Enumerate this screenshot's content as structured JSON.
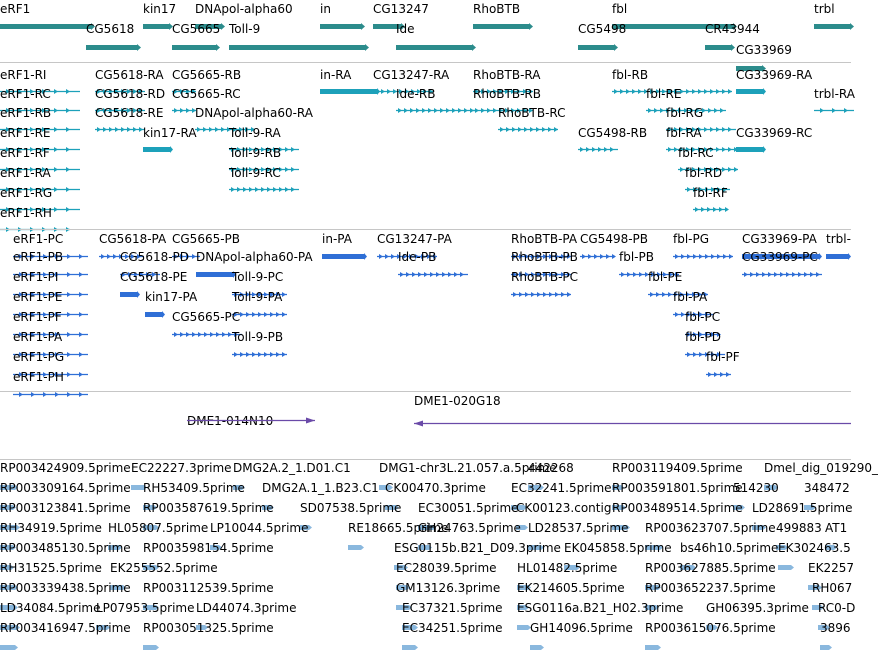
{
  "tracks": {
    "genes": {
      "color": "#2c8c8c",
      "features": [
        {
          "label": "eRF1"
        },
        {
          "label": "kin17"
        },
        {
          "label": "DNApol-alpha60"
        },
        {
          "label": "in"
        },
        {
          "label": "CG13247"
        },
        {
          "label": "RhoBTB"
        },
        {
          "label": "fbl"
        },
        {
          "label": "trbl"
        },
        {
          "label": "CG5618"
        },
        {
          "label": "CG5665"
        },
        {
          "label": "Toll-9"
        },
        {
          "label": "Ide"
        },
        {
          "label": "CG5498"
        },
        {
          "label": "CR43944"
        },
        {
          "label": "CG33969"
        }
      ]
    },
    "transcripts": {
      "color": "#1da1ba",
      "features": [
        {
          "label": "eRF1-RI"
        },
        {
          "label": "CG5618-RA"
        },
        {
          "label": "CG5665-RB"
        },
        {
          "label": "in-RA"
        },
        {
          "label": "CG13247-RA"
        },
        {
          "label": "RhoBTB-RA"
        },
        {
          "label": "fbl-RB"
        },
        {
          "label": "CG33969-RA"
        },
        {
          "label": "eRF1-RC"
        },
        {
          "label": "CG5618-RD"
        },
        {
          "label": "CG5665-RC"
        },
        {
          "label": "Ide-RB"
        },
        {
          "label": "RhoBTB-RB"
        },
        {
          "label": "fbl-RE"
        },
        {
          "label": "trbl-RA"
        },
        {
          "label": "eRF1-RB"
        },
        {
          "label": "CG5618-RE"
        },
        {
          "label": "DNApol-alpha60-RA"
        },
        {
          "label": "RhoBTB-RC"
        },
        {
          "label": "fbl-RG"
        },
        {
          "label": "eRF1-RE"
        },
        {
          "label": "kin17-RA"
        },
        {
          "label": "Toll-9-RA"
        },
        {
          "label": "CG5498-RB"
        },
        {
          "label": "fbl-RA"
        },
        {
          "label": "CG33969-RC"
        },
        {
          "label": "eRF1-RF"
        },
        {
          "label": "Toll-9-RB"
        },
        {
          "label": "fbl-RC"
        },
        {
          "label": "eRF1-RA"
        },
        {
          "label": "Toll-9-RC"
        },
        {
          "label": "fbl-RD"
        },
        {
          "label": "eRF1-RG"
        },
        {
          "label": "fbl-RF"
        },
        {
          "label": "eRF1-RH"
        }
      ]
    },
    "proteins": {
      "color": "#2f6fd6",
      "features": [
        {
          "label": "eRF1-PC"
        },
        {
          "label": "CG5618-PA"
        },
        {
          "label": "CG5665-PB"
        },
        {
          "label": "in-PA"
        },
        {
          "label": "CG13247-PA"
        },
        {
          "label": "RhoBTB-PA"
        },
        {
          "label": "CG5498-PB"
        },
        {
          "label": "fbl-PG"
        },
        {
          "label": "CG33969-PA"
        },
        {
          "label": "trbl-"
        },
        {
          "label": "eRF1-PB"
        },
        {
          "label": "CG5618-PD"
        },
        {
          "label": "DNApol-alpha60-PA"
        },
        {
          "label": "Ide-PB"
        },
        {
          "label": "RhoBTB-PB"
        },
        {
          "label": "fbl-PB"
        },
        {
          "label": "CG33969-PC"
        },
        {
          "label": "eRF1-PI"
        },
        {
          "label": "CG5618-PE"
        },
        {
          "label": "Toll-9-PC"
        },
        {
          "label": "RhoBTB-PC"
        },
        {
          "label": "fbl-PE"
        },
        {
          "label": "eRF1-PE"
        },
        {
          "label": "kin17-PA"
        },
        {
          "label": "Toll-9-PA"
        },
        {
          "label": "fbl-PA"
        },
        {
          "label": "eRF1-PF"
        },
        {
          "label": "CG5665-PC"
        },
        {
          "label": "fbl-PC"
        },
        {
          "label": "eRF1-PA"
        },
        {
          "label": "Toll-9-PB"
        },
        {
          "label": "fbl-PD"
        },
        {
          "label": "eRF1-PG"
        },
        {
          "label": "fbl-PF"
        },
        {
          "label": "eRF1-PH"
        }
      ]
    },
    "clones": {
      "color": "#6a4aa8",
      "features": [
        {
          "label": "DME1-020G18"
        },
        {
          "label": "DME1-014N10"
        }
      ]
    },
    "ests": {
      "color": "#8ab8de",
      "features": [
        {
          "label": "RP003424909.5prime"
        },
        {
          "label": "EC22227.3prime"
        },
        {
          "label": "DMG2A.2_1.D01.C1"
        },
        {
          "label": "DMG1-chr3L.21.057.a.5prime"
        },
        {
          "label": "442268"
        },
        {
          "label": "RP003119409.5prime"
        },
        {
          "label": "Dmel_dig_019290_"
        },
        {
          "label": "RP003309164.5prime"
        },
        {
          "label": "RH53409.5prime"
        },
        {
          "label": "DMG2A.1_1.B23.C1"
        },
        {
          "label": "CK00470.3prime"
        },
        {
          "label": "EC32241.5prime"
        },
        {
          "label": "RP003591801.5prime"
        },
        {
          "label": "514230"
        },
        {
          "label": "348472"
        },
        {
          "label": "RP003123841.5prime"
        },
        {
          "label": "RP003587619.5prime"
        },
        {
          "label": "SD07538.5prime"
        },
        {
          "label": "EC30051.5prime"
        },
        {
          "label": "CK00123.contig"
        },
        {
          "label": "RP003489514.5prime"
        },
        {
          "label": "LD28691.5prime"
        },
        {
          "label": "RH34919.5prime"
        },
        {
          "label": "HL05807.5prime"
        },
        {
          "label": "LP10044.5prime"
        },
        {
          "label": "RE18665.5prime"
        },
        {
          "label": "GH24763.5prime"
        },
        {
          "label": "LD28537.5prime"
        },
        {
          "label": "RP003623707.5prime"
        },
        {
          "label": "499883"
        },
        {
          "label": "AT1"
        },
        {
          "label": "RP003485130.5prime"
        },
        {
          "label": "RP003598154.5prime"
        },
        {
          "label": "ESG0115b.B21_D09.3prime"
        },
        {
          "label": "EK045858.5prime"
        },
        {
          "label": "bs46h10.5prime"
        },
        {
          "label": "EK302463.5"
        },
        {
          "label": "RH31525.5prime"
        },
        {
          "label": "EK255552.5prime"
        },
        {
          "label": "EC28039.5prime"
        },
        {
          "label": "HL01482.5prime"
        },
        {
          "label": "RP003627885.5prime"
        },
        {
          "label": "EK2257"
        },
        {
          "label": "RP003339438.5prime"
        },
        {
          "label": "RP003112539.5prime"
        },
        {
          "label": "GM13126.3prime"
        },
        {
          "label": "EK214605.5prime"
        },
        {
          "label": "RP003652237.5prime"
        },
        {
          "label": "RH067"
        },
        {
          "label": "LD34084.5prime"
        },
        {
          "label": "LP07953.5prime"
        },
        {
          "label": "LD44074.3prime"
        },
        {
          "label": "EC37321.5prime"
        },
        {
          "label": "ESG0116a.B21_H02.3prime"
        },
        {
          "label": "GH06395.3prime"
        },
        {
          "label": "RC0-D"
        },
        {
          "label": "RP003416947.5prime"
        },
        {
          "label": "RP003051325.5prime"
        },
        {
          "label": "EC34251.5prime"
        },
        {
          "label": "GH14096.5prime"
        },
        {
          "label": "RP003615076.5prime"
        },
        {
          "label": "3896"
        }
      ]
    }
  }
}
